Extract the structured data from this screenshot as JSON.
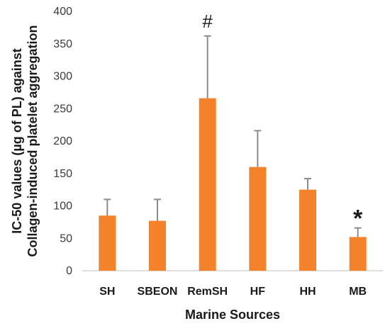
{
  "chart_data": {
    "type": "bar",
    "categories": [
      "SH",
      "SBEON",
      "RemSH",
      "HF",
      "HH",
      "MB"
    ],
    "values": [
      85,
      77,
      266,
      160,
      125,
      52
    ],
    "error_upper": [
      110,
      110,
      362,
      216,
      142,
      66
    ],
    "ylim": [
      0,
      400
    ],
    "yticks": [
      0,
      50,
      100,
      150,
      200,
      250,
      300,
      350,
      400
    ],
    "xlabel": "Marine Sources",
    "ylabel_line1": "IC-50 values (µg of PL) against",
    "ylabel_line2": "Collagen-induced platelet aggregation",
    "annotations": [
      {
        "category": "RemSH",
        "text": "#"
      },
      {
        "category": "MB",
        "text": "*"
      }
    ],
    "bar_color": "#f4822a",
    "error_color": "#8c8c8c",
    "grid": false,
    "legend": "none"
  }
}
